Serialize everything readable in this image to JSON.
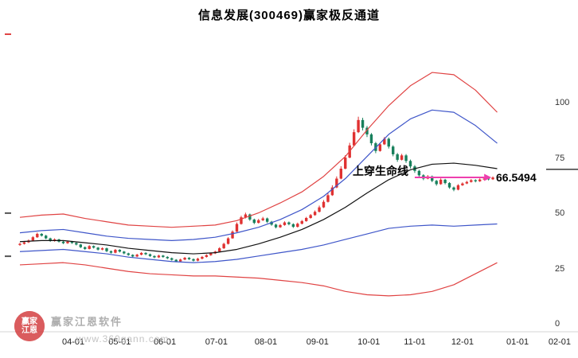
{
  "colors": {
    "up": "#e03131",
    "down": "#18805c",
    "outer_band": "#e04343",
    "inner_band": "#3f56c9",
    "life_line": "#111111",
    "signal_arrow": "#ee3fae",
    "axis_text": "#333333"
  },
  "watermark": {
    "brand": "赢家江恩软件",
    "url": "www.360gann.com",
    "seal_top": "赢家",
    "seal_bottom": "江恩"
  },
  "chart_data": {
    "type": "candlestick",
    "title": "信息发展(300469)赢家极反通道",
    "stock_name": "信息发展",
    "stock_code": "300469",
    "channel_name": "赢家极反通道",
    "ylim": [
      0,
      135
    ],
    "y_ticks": [
      100,
      75,
      50,
      25,
      0
    ],
    "x_ticks": [
      {
        "label": "04-01",
        "i": 12.3
      },
      {
        "label": "05-01",
        "i": 23
      },
      {
        "label": "06-01",
        "i": 33.4
      },
      {
        "label": "07-01",
        "i": 45.3
      },
      {
        "label": "08-01",
        "i": 56.7
      },
      {
        "label": "09-01",
        "i": 68.6
      },
      {
        "label": "10-01",
        "i": 80.4
      },
      {
        "label": "11-01",
        "i": 91
      },
      {
        "label": "12-01",
        "i": 102
      },
      {
        "label": "01-01",
        "i": 114.7
      },
      {
        "label": "02-01",
        "i": 124.4
      }
    ],
    "signal": {
      "label": "上穿生命线",
      "price": 66.5494,
      "price_label": "66.5494",
      "from_i": 91,
      "to_i": 107
    },
    "right_level": 70.2,
    "left_ticks": [
      {
        "value": 131.3,
        "color": "#e04343"
      },
      {
        "value": 50.4,
        "color": "#555555"
      },
      {
        "value": 30.9,
        "color": "#555555"
      }
    ],
    "candles": [
      [
        36.0,
        37.0,
        35.6,
        36.5
      ],
      [
        36.5,
        37.8,
        36.2,
        37.2
      ],
      [
        37.2,
        38.5,
        36.9,
        38.0
      ],
      [
        38.0,
        40.0,
        37.7,
        39.5
      ],
      [
        39.5,
        41.6,
        39.2,
        41.0
      ],
      [
        41.0,
        41.4,
        39.8,
        40.2
      ],
      [
        40.2,
        40.6,
        38.6,
        39.0
      ],
      [
        39.0,
        39.3,
        37.4,
        37.8
      ],
      [
        37.8,
        39.0,
        37.5,
        38.5
      ],
      [
        38.5,
        38.8,
        37.1,
        37.5
      ],
      [
        37.5,
        37.9,
        36.4,
        36.8
      ],
      [
        36.8,
        38.0,
        36.5,
        37.5
      ],
      [
        37.5,
        37.8,
        36.5,
        36.9
      ],
      [
        36.9,
        37.2,
        35.8,
        36.2
      ],
      [
        36.2,
        36.5,
        34.6,
        35.0
      ],
      [
        35.0,
        35.3,
        33.8,
        34.2
      ],
      [
        34.2,
        35.9,
        34.0,
        35.5
      ],
      [
        35.5,
        35.8,
        34.4,
        34.8
      ],
      [
        34.8,
        35.1,
        33.5,
        33.9
      ],
      [
        33.9,
        34.9,
        33.6,
        34.5
      ],
      [
        34.5,
        34.8,
        32.8,
        33.2
      ],
      [
        33.2,
        33.5,
        32.1,
        32.5
      ],
      [
        32.5,
        34.2,
        32.2,
        33.8
      ],
      [
        33.8,
        34.1,
        32.6,
        33.0
      ],
      [
        33.0,
        33.3,
        31.8,
        32.2
      ],
      [
        32.2,
        32.5,
        31.1,
        31.5
      ],
      [
        31.5,
        31.8,
        30.4,
        30.8
      ],
      [
        30.8,
        32.0,
        30.5,
        31.6
      ],
      [
        31.6,
        32.8,
        31.3,
        32.4
      ],
      [
        32.4,
        32.7,
        31.4,
        31.8
      ],
      [
        31.8,
        32.1,
        30.6,
        31.0
      ],
      [
        31.0,
        31.3,
        30.0,
        30.4
      ],
      [
        30.4,
        31.6,
        30.1,
        31.2
      ],
      [
        31.2,
        31.5,
        30.2,
        30.6
      ],
      [
        30.6,
        30.9,
        29.6,
        30.0
      ],
      [
        30.0,
        30.3,
        28.9,
        29.3
      ],
      [
        29.3,
        29.6,
        28.2,
        28.6
      ],
      [
        28.6,
        29.8,
        28.3,
        29.4
      ],
      [
        29.4,
        30.6,
        29.1,
        30.2
      ],
      [
        30.2,
        30.5,
        29.2,
        29.6
      ],
      [
        29.6,
        29.9,
        28.5,
        28.9
      ],
      [
        28.9,
        30.2,
        28.6,
        29.8
      ],
      [
        29.8,
        31.0,
        29.5,
        30.6
      ],
      [
        30.6,
        31.8,
        30.3,
        31.4
      ],
      [
        31.4,
        32.6,
        31.1,
        32.2
      ],
      [
        32.2,
        33.4,
        31.9,
        33.0
      ],
      [
        33.0,
        35.0,
        32.8,
        34.5
      ],
      [
        34.5,
        37.0,
        34.2,
        36.5
      ],
      [
        36.5,
        39.5,
        36.2,
        39.0
      ],
      [
        39.0,
        42.6,
        38.8,
        42.0
      ],
      [
        42.0,
        46.2,
        41.8,
        45.5
      ],
      [
        45.5,
        49.2,
        45.2,
        48.5
      ],
      [
        48.5,
        50.6,
        48.0,
        49.8
      ],
      [
        49.8,
        50.2,
        46.9,
        47.5
      ],
      [
        47.5,
        47.9,
        45.4,
        46.0
      ],
      [
        46.0,
        47.8,
        45.7,
        47.2
      ],
      [
        47.2,
        48.7,
        46.8,
        48.0
      ],
      [
        48.0,
        48.4,
        45.9,
        46.5
      ],
      [
        46.5,
        46.9,
        44.7,
        45.2
      ],
      [
        45.2,
        45.6,
        43.5,
        44.0
      ],
      [
        44.0,
        45.5,
        43.7,
        45.0
      ],
      [
        45.0,
        46.7,
        44.7,
        46.2
      ],
      [
        46.2,
        46.6,
        44.9,
        45.4
      ],
      [
        45.4,
        45.8,
        43.7,
        44.2
      ],
      [
        44.2,
        46.1,
        43.9,
        45.6
      ],
      [
        45.6,
        47.3,
        45.3,
        46.8
      ],
      [
        46.8,
        48.7,
        46.5,
        48.2
      ],
      [
        48.2,
        50.0,
        47.9,
        49.5
      ],
      [
        49.5,
        51.6,
        49.2,
        51.0
      ],
      [
        51.0,
        53.8,
        50.7,
        53.0
      ],
      [
        53.0,
        56.3,
        52.7,
        55.5
      ],
      [
        55.5,
        59.4,
        55.2,
        58.5
      ],
      [
        58.5,
        63.0,
        58.2,
        62.0
      ],
      [
        62.0,
        67.0,
        61.7,
        66.0
      ],
      [
        66.0,
        71.6,
        65.7,
        70.5
      ],
      [
        70.5,
        76.6,
        70.2,
        75.5
      ],
      [
        75.5,
        82.2,
        75.2,
        81.0
      ],
      [
        81.0,
        88.3,
        80.7,
        87.0
      ],
      [
        87.0,
        94.0,
        86.6,
        92.5
      ],
      [
        92.5,
        93.5,
        87.8,
        89.0
      ],
      [
        89.0,
        89.8,
        84.8,
        86.0
      ],
      [
        86.0,
        86.6,
        81.0,
        82.0
      ],
      [
        82.0,
        82.6,
        77.5,
        78.5
      ],
      [
        78.5,
        82.2,
        78.2,
        81.5
      ],
      [
        81.5,
        84.8,
        81.2,
        84.0
      ],
      [
        84.0,
        84.6,
        79.6,
        80.5
      ],
      [
        80.5,
        81.1,
        76.1,
        77.0
      ],
      [
        77.0,
        77.6,
        73.6,
        74.5
      ],
      [
        74.5,
        77.2,
        74.2,
        76.5
      ],
      [
        76.5,
        77.1,
        73.1,
        74.0
      ],
      [
        74.0,
        74.6,
        70.6,
        71.5
      ],
      [
        71.5,
        72.1,
        68.6,
        69.5
      ],
      [
        69.5,
        70.0,
        66.8,
        67.5
      ],
      [
        67.5,
        68.0,
        65.3,
        66.0
      ],
      [
        66.0,
        67.6,
        65.7,
        67.0
      ],
      [
        67.0,
        67.4,
        64.4,
        65.0
      ],
      [
        65.0,
        65.4,
        62.8,
        63.5
      ],
      [
        63.5,
        66.1,
        63.2,
        65.5
      ],
      [
        65.5,
        65.9,
        63.4,
        64.0
      ],
      [
        64.0,
        64.4,
        61.4,
        62.0
      ],
      [
        62.0,
        62.4,
        60.3,
        61.0
      ],
      [
        61.0,
        63.5,
        60.7,
        63.0
      ],
      [
        63.0,
        64.3,
        62.7,
        63.8
      ],
      [
        63.8,
        65.0,
        63.5,
        64.5
      ],
      [
        64.5,
        65.8,
        64.2,
        65.3
      ],
      [
        65.3,
        65.7,
        64.3,
        64.8
      ],
      [
        64.8,
        66.1,
        64.5,
        65.6
      ],
      [
        65.6,
        66.5,
        65.3,
        66.0
      ],
      [
        66.0,
        66.4,
        65.2,
        65.7
      ],
      [
        65.7,
        67.0,
        65.4,
        66.5
      ]
    ],
    "overlays": [
      {
        "name": "upper-outer-red-band",
        "color": "#e04343",
        "step": 5,
        "values": [
          48.5,
          49.5,
          50,
          48,
          46.5,
          45,
          44.5,
          44,
          44.5,
          45,
          47,
          50.5,
          55,
          60,
          67,
          76,
          88,
          99,
          108,
          114,
          113,
          106,
          96
        ]
      },
      {
        "name": "upper-inner-blue-band",
        "color": "#3f56c9",
        "step": 5,
        "values": [
          41.5,
          42.5,
          43,
          41.5,
          40,
          39,
          38.5,
          38,
          38.5,
          39.5,
          41.5,
          44,
          47.5,
          52,
          58,
          66,
          76,
          86,
          93,
          97,
          96,
          90,
          82
        ]
      },
      {
        "name": "life-line",
        "color": "#111111",
        "step": 5,
        "values": [
          37.5,
          38,
          38,
          37,
          36,
          34.5,
          33.5,
          32.5,
          32,
          32.5,
          34,
          36.5,
          39.5,
          43,
          47.5,
          53,
          59.5,
          65.5,
          70,
          72.5,
          73,
          72,
          70.5
        ]
      },
      {
        "name": "lower-inner-blue-band",
        "color": "#3f56c9",
        "step": 5,
        "values": [
          33,
          33.5,
          34,
          33,
          32,
          30.5,
          29.5,
          28.5,
          28,
          28.5,
          29.5,
          31,
          32.5,
          34,
          36,
          38.5,
          41,
          43.5,
          44.5,
          45,
          44.5,
          45,
          45.5
        ]
      },
      {
        "name": "lower-outer-red-band",
        "color": "#e04343",
        "step": 5,
        "values": [
          27,
          27.5,
          28,
          27,
          25.5,
          24,
          23,
          22.5,
          22,
          22,
          21.5,
          21,
          20,
          19,
          17.5,
          15,
          13.5,
          13,
          13.5,
          15,
          18,
          23,
          28
        ]
      }
    ]
  }
}
